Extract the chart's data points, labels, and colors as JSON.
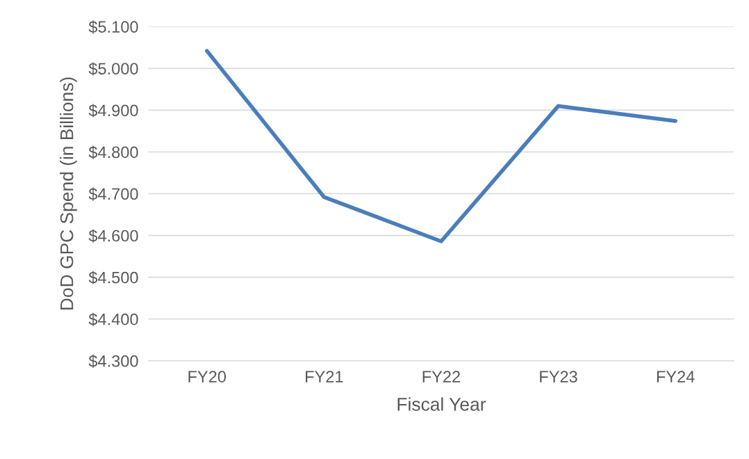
{
  "chart_data": {
    "type": "line",
    "xlabel": "Fiscal Year",
    "ylabel": "DoD GPC Spend (in Billions)",
    "categories": [
      "FY20",
      "FY21",
      "FY22",
      "FY23",
      "FY24"
    ],
    "series": [
      {
        "color": "#4a7ebb",
        "values": [
          5.042,
          4.692,
          4.586,
          4.91,
          4.874
        ]
      }
    ],
    "ylim": [
      4.3,
      5.1
    ],
    "yticks": [
      {
        "value": 4.3,
        "label": "$4.300"
      },
      {
        "value": 4.4,
        "label": "$4.400"
      },
      {
        "value": 4.5,
        "label": "$4.500"
      },
      {
        "value": 4.6,
        "label": "$4.600"
      },
      {
        "value": 4.7,
        "label": "$4.700"
      },
      {
        "value": 4.8,
        "label": "$4.800"
      },
      {
        "value": 4.9,
        "label": "$4.900"
      },
      {
        "value": 5.0,
        "label": "$5.000"
      },
      {
        "value": 5.1,
        "label": "$5.100"
      }
    ],
    "grid": "y",
    "marker": "none",
    "line_style": "solid"
  }
}
